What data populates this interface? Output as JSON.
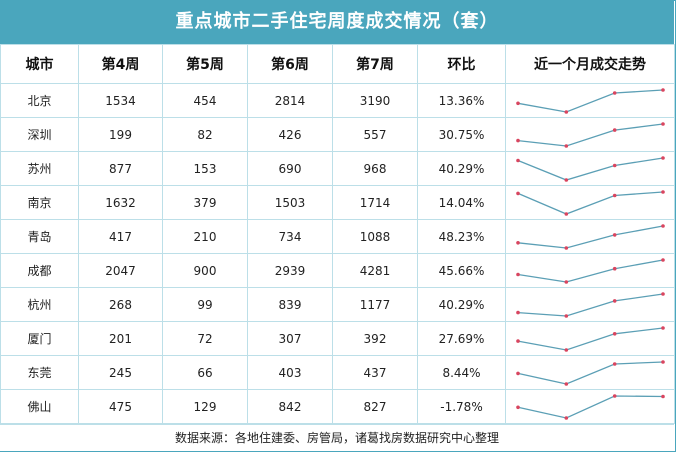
{
  "title": "重点城市二手住宅周度成交情况（套）",
  "chart_data": {
    "type": "table",
    "columns": [
      "城市",
      "第4周",
      "第5周",
      "第6周",
      "第7周",
      "环比",
      "近一个月成交走势"
    ],
    "rows": [
      {
        "city": "北京",
        "w4": 1534,
        "w5": 454,
        "w6": 2814,
        "w7": 3190,
        "mom": "13.36%"
      },
      {
        "city": "深圳",
        "w4": 199,
        "w5": 82,
        "w6": 426,
        "w7": 557,
        "mom": "30.75%"
      },
      {
        "city": "苏州",
        "w4": 877,
        "w5": 153,
        "w6": 690,
        "w7": 968,
        "mom": "40.29%"
      },
      {
        "city": "南京",
        "w4": 1632,
        "w5": 379,
        "w6": 1503,
        "w7": 1714,
        "mom": "14.04%"
      },
      {
        "city": "青岛",
        "w4": 417,
        "w5": 210,
        "w6": 734,
        "w7": 1088,
        "mom": "48.23%"
      },
      {
        "city": "成都",
        "w4": 2047,
        "w5": 900,
        "w6": 2939,
        "w7": 4281,
        "mom": "45.66%"
      },
      {
        "city": "杭州",
        "w4": 268,
        "w5": 99,
        "w6": 839,
        "w7": 1177,
        "mom": "40.29%"
      },
      {
        "city": "厦门",
        "w4": 201,
        "w5": 72,
        "w6": 307,
        "w7": 392,
        "mom": "27.69%"
      },
      {
        "city": "东莞",
        "w4": 245,
        "w5": 66,
        "w6": 403,
        "w7": 437,
        "mom": "8.44%"
      },
      {
        "city": "佛山",
        "w4": 475,
        "w5": 129,
        "w6": 842,
        "w7": 827,
        "mom": "-1.78%"
      }
    ]
  },
  "footer": "数据来源：各地住建委、房管局，诸葛找房数据研究中心整理",
  "colors": {
    "header": "#4aa6bd",
    "line": "#5b9fb5",
    "point": "#d9455f",
    "border": "#bcdfe8"
  }
}
